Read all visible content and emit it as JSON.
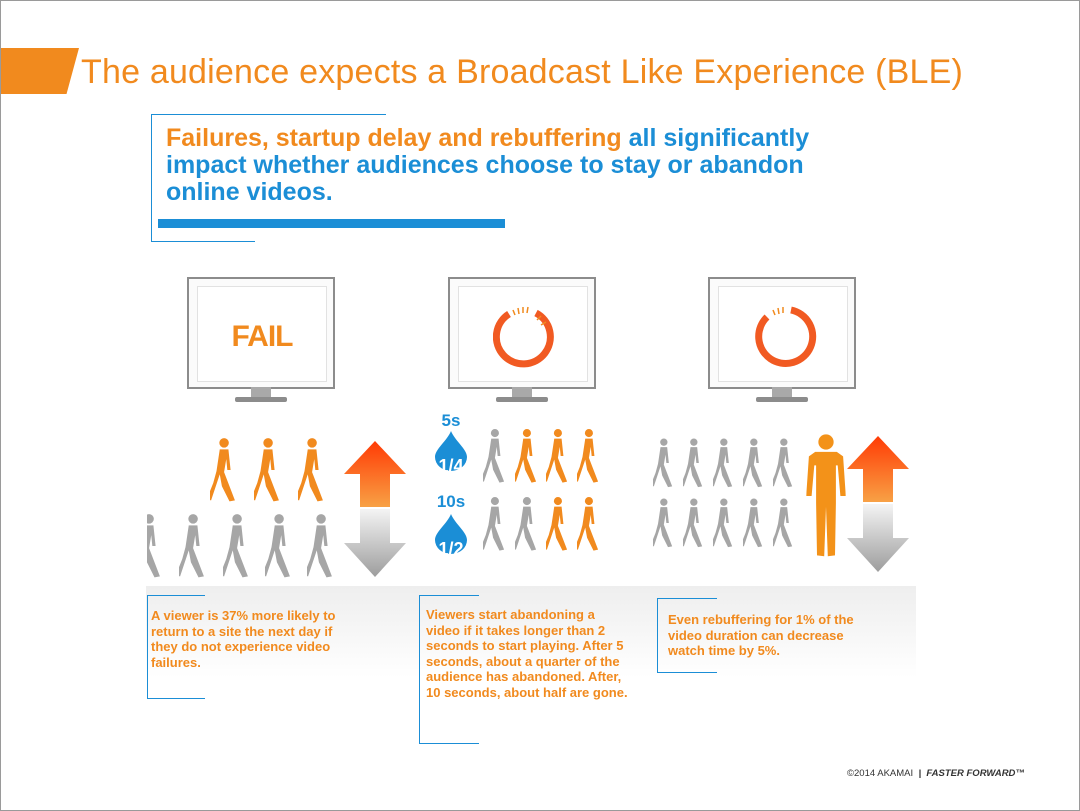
{
  "slide": {
    "title": "The audience expects a Broadcast Like Experience (BLE)",
    "headline": {
      "part1_orange": "Failures, startup delay and rebuffering",
      "part2_blue": " all significantly impact whether audiences choose to stay or abandon online videos."
    }
  },
  "monitors": [
    {
      "id": "fail",
      "text": "FAIL"
    },
    {
      "id": "startup",
      "icon": "loading-spinner-icon"
    },
    {
      "id": "rebuffer",
      "icon": "loading-spinner-icon"
    }
  ],
  "startup_delay": {
    "first": {
      "time": "5s",
      "fraction": "1/4"
    },
    "second": {
      "time": "10s",
      "fraction": "1/2"
    }
  },
  "captions": {
    "failures": "A viewer is 37% more likely to return to a site the next day if they do not experience video failures.",
    "startup": "Viewers start abandoning a video if it takes longer than 2 seconds to start playing. After 5 seconds, about a quarter of the audience has abandoned. After, 10 seconds, about half are gone.",
    "rebuffering": "Even rebuffering for 1% of the video duration can decrease watch time by 5%."
  },
  "footer": {
    "copyright": "©2014 AKAMAI",
    "separator": "|",
    "tagline": "FASTER FORWARD™"
  },
  "colors": {
    "orange": "#f18a1e",
    "blue": "#1b8ed6",
    "gray": "#a6a6a6"
  }
}
